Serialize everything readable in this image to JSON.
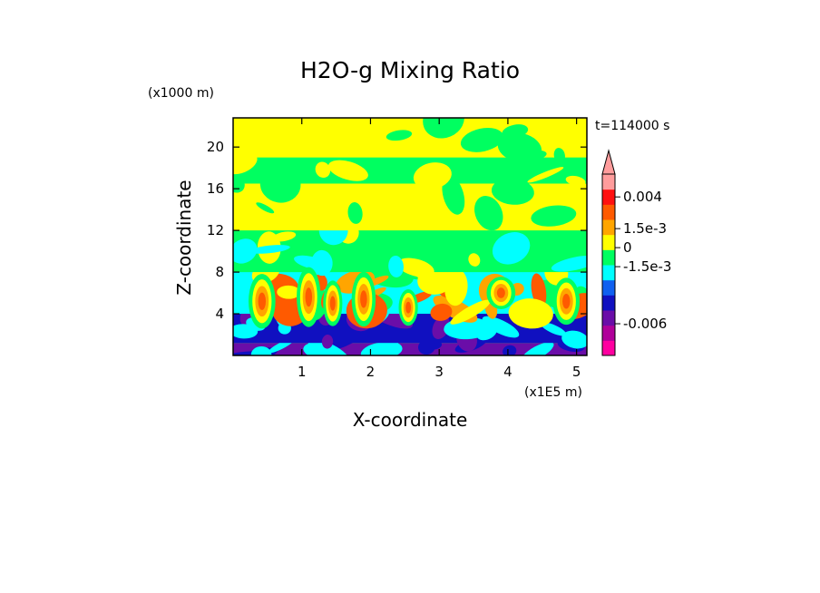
{
  "chart_data": {
    "type": "heatmap",
    "title": "H2O-g Mixing Ratio",
    "time_label": "t=114000 s",
    "xlabel": "X-coordinate",
    "ylabel": "Z-coordinate",
    "x_unit": "(x1E5 m)",
    "y_unit": "(x1000 m)",
    "xlim": [
      0,
      5.15
    ],
    "ylim": [
      0,
      22.8
    ],
    "x_ticks": [
      1,
      2,
      3,
      4,
      5
    ],
    "y_ticks": [
      4,
      8,
      12,
      16,
      20
    ],
    "colorbar": {
      "labels": [
        "0.004",
        "1.5e-3",
        "0",
        "-1.5e-3",
        "-0.006"
      ],
      "label_values": [
        0.004,
        0.0015,
        0,
        -0.0015,
        -0.006
      ],
      "colors": [
        "#ff00a0",
        "#b0009a",
        "#6a0da8",
        "#1010c0",
        "#1060f0",
        "#00ffff",
        "#00ff60",
        "#ffff00",
        "#ffa500",
        "#ff5a00",
        "#ff1010",
        "#ff9c9c"
      ]
    },
    "bands": [
      {
        "z": [
          0,
          1.2
        ],
        "colors": [
          "#6a0da8",
          "#1010c0",
          "#00ffff"
        ]
      },
      {
        "z": [
          1.2,
          4
        ],
        "colors": [
          "#1010c0",
          "#6a0da8",
          "#00ffff"
        ]
      },
      {
        "z": [
          4,
          8
        ],
        "colors": [
          "#00ffff",
          "#00ff60",
          "#ffa500",
          "#ff5a00",
          "#ffff00"
        ]
      },
      {
        "z": [
          8,
          12
        ],
        "colors": [
          "#00ff60",
          "#ffff00",
          "#00ffff"
        ]
      },
      {
        "z": [
          12,
          16.5
        ],
        "colors": [
          "#ffff00",
          "#00ff60"
        ]
      },
      {
        "z": [
          16.5,
          19
        ],
        "colors": [
          "#00ff60",
          "#ffff00"
        ]
      },
      {
        "z": [
          19,
          22.8
        ],
        "colors": [
          "#ffff00",
          "#00ff60"
        ]
      }
    ],
    "plumes": [
      {
        "x": 0.42,
        "z": 5.2,
        "w": 0.28,
        "h": 4.2
      },
      {
        "x": 1.1,
        "z": 5.6,
        "w": 0.25,
        "h": 4.6
      },
      {
        "x": 1.45,
        "z": 5.0,
        "w": 0.2,
        "h": 3.5
      },
      {
        "x": 1.9,
        "z": 5.4,
        "w": 0.25,
        "h": 4.2
      },
      {
        "x": 2.55,
        "z": 4.6,
        "w": 0.2,
        "h": 2.8
      },
      {
        "x": 3.9,
        "z": 6.0,
        "w": 0.3,
        "h": 2.5
      },
      {
        "x": 4.85,
        "z": 5.2,
        "w": 0.28,
        "h": 3.6
      }
    ]
  }
}
